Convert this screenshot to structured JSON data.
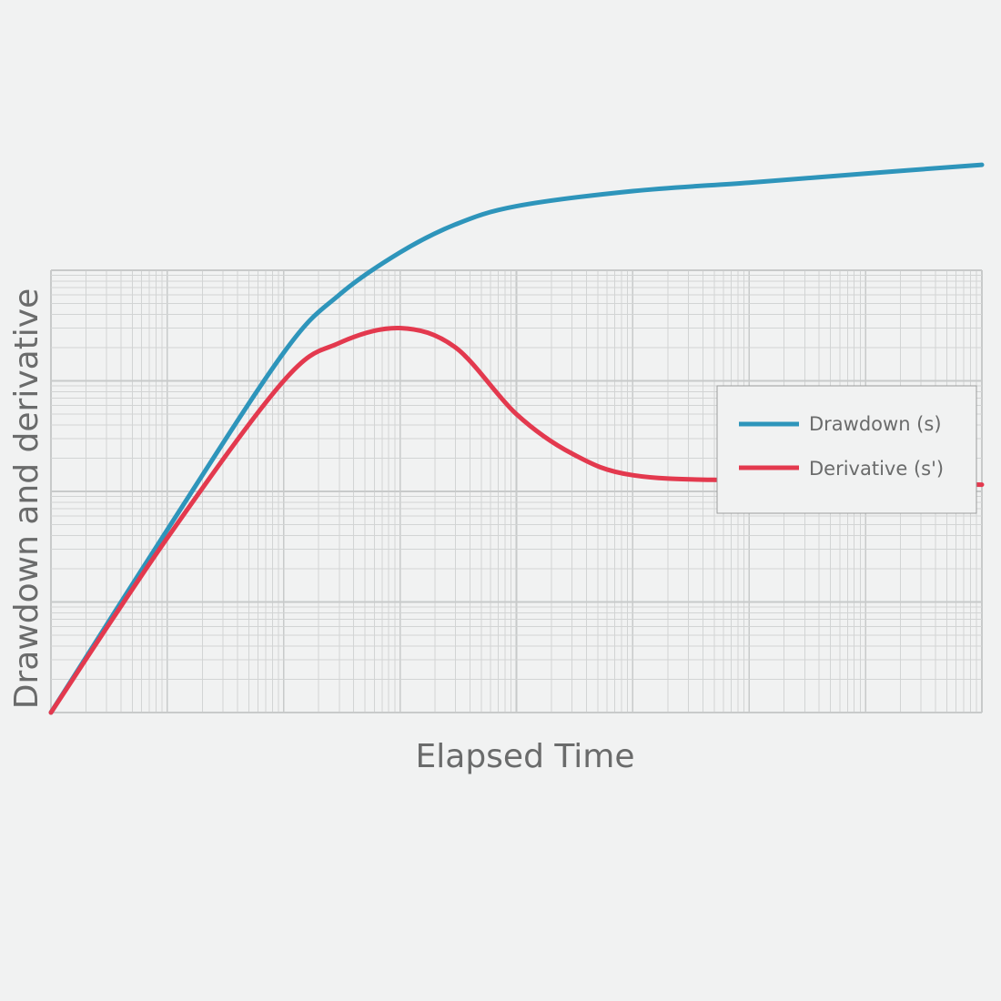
{
  "chart_data": {
    "type": "line",
    "title": "",
    "xlabel": "Elapsed Time",
    "ylabel": "Drawdown and derivative",
    "x_scale": "log",
    "y_scale": "log",
    "x_decades": 8,
    "y_decades": 4,
    "grid": true,
    "legend_position": "right",
    "series": [
      {
        "name": "Drawdown (s)",
        "color": "#2e95bb",
        "points": [
          [
            1,
            1
          ],
          [
            10,
            45
          ],
          [
            100,
            1800
          ],
          [
            300,
            6000
          ],
          [
            1000,
            14500
          ],
          [
            3000,
            26000
          ],
          [
            10000,
            38000
          ],
          [
            100000,
            52000
          ],
          [
            1000000,
            62000
          ],
          [
            10000000,
            75000
          ],
          [
            100000000,
            90000
          ]
        ]
      },
      {
        "name": "Derivative (s')",
        "color": "#e3394e",
        "points": [
          [
            1,
            1
          ],
          [
            10,
            38
          ],
          [
            100,
            1000
          ],
          [
            300,
            2200
          ],
          [
            1000,
            3000
          ],
          [
            3000,
            2000
          ],
          [
            10000,
            500
          ],
          [
            30000,
            220
          ],
          [
            100000,
            140
          ],
          [
            1000000,
            125
          ],
          [
            100000000,
            115
          ]
        ]
      }
    ]
  }
}
